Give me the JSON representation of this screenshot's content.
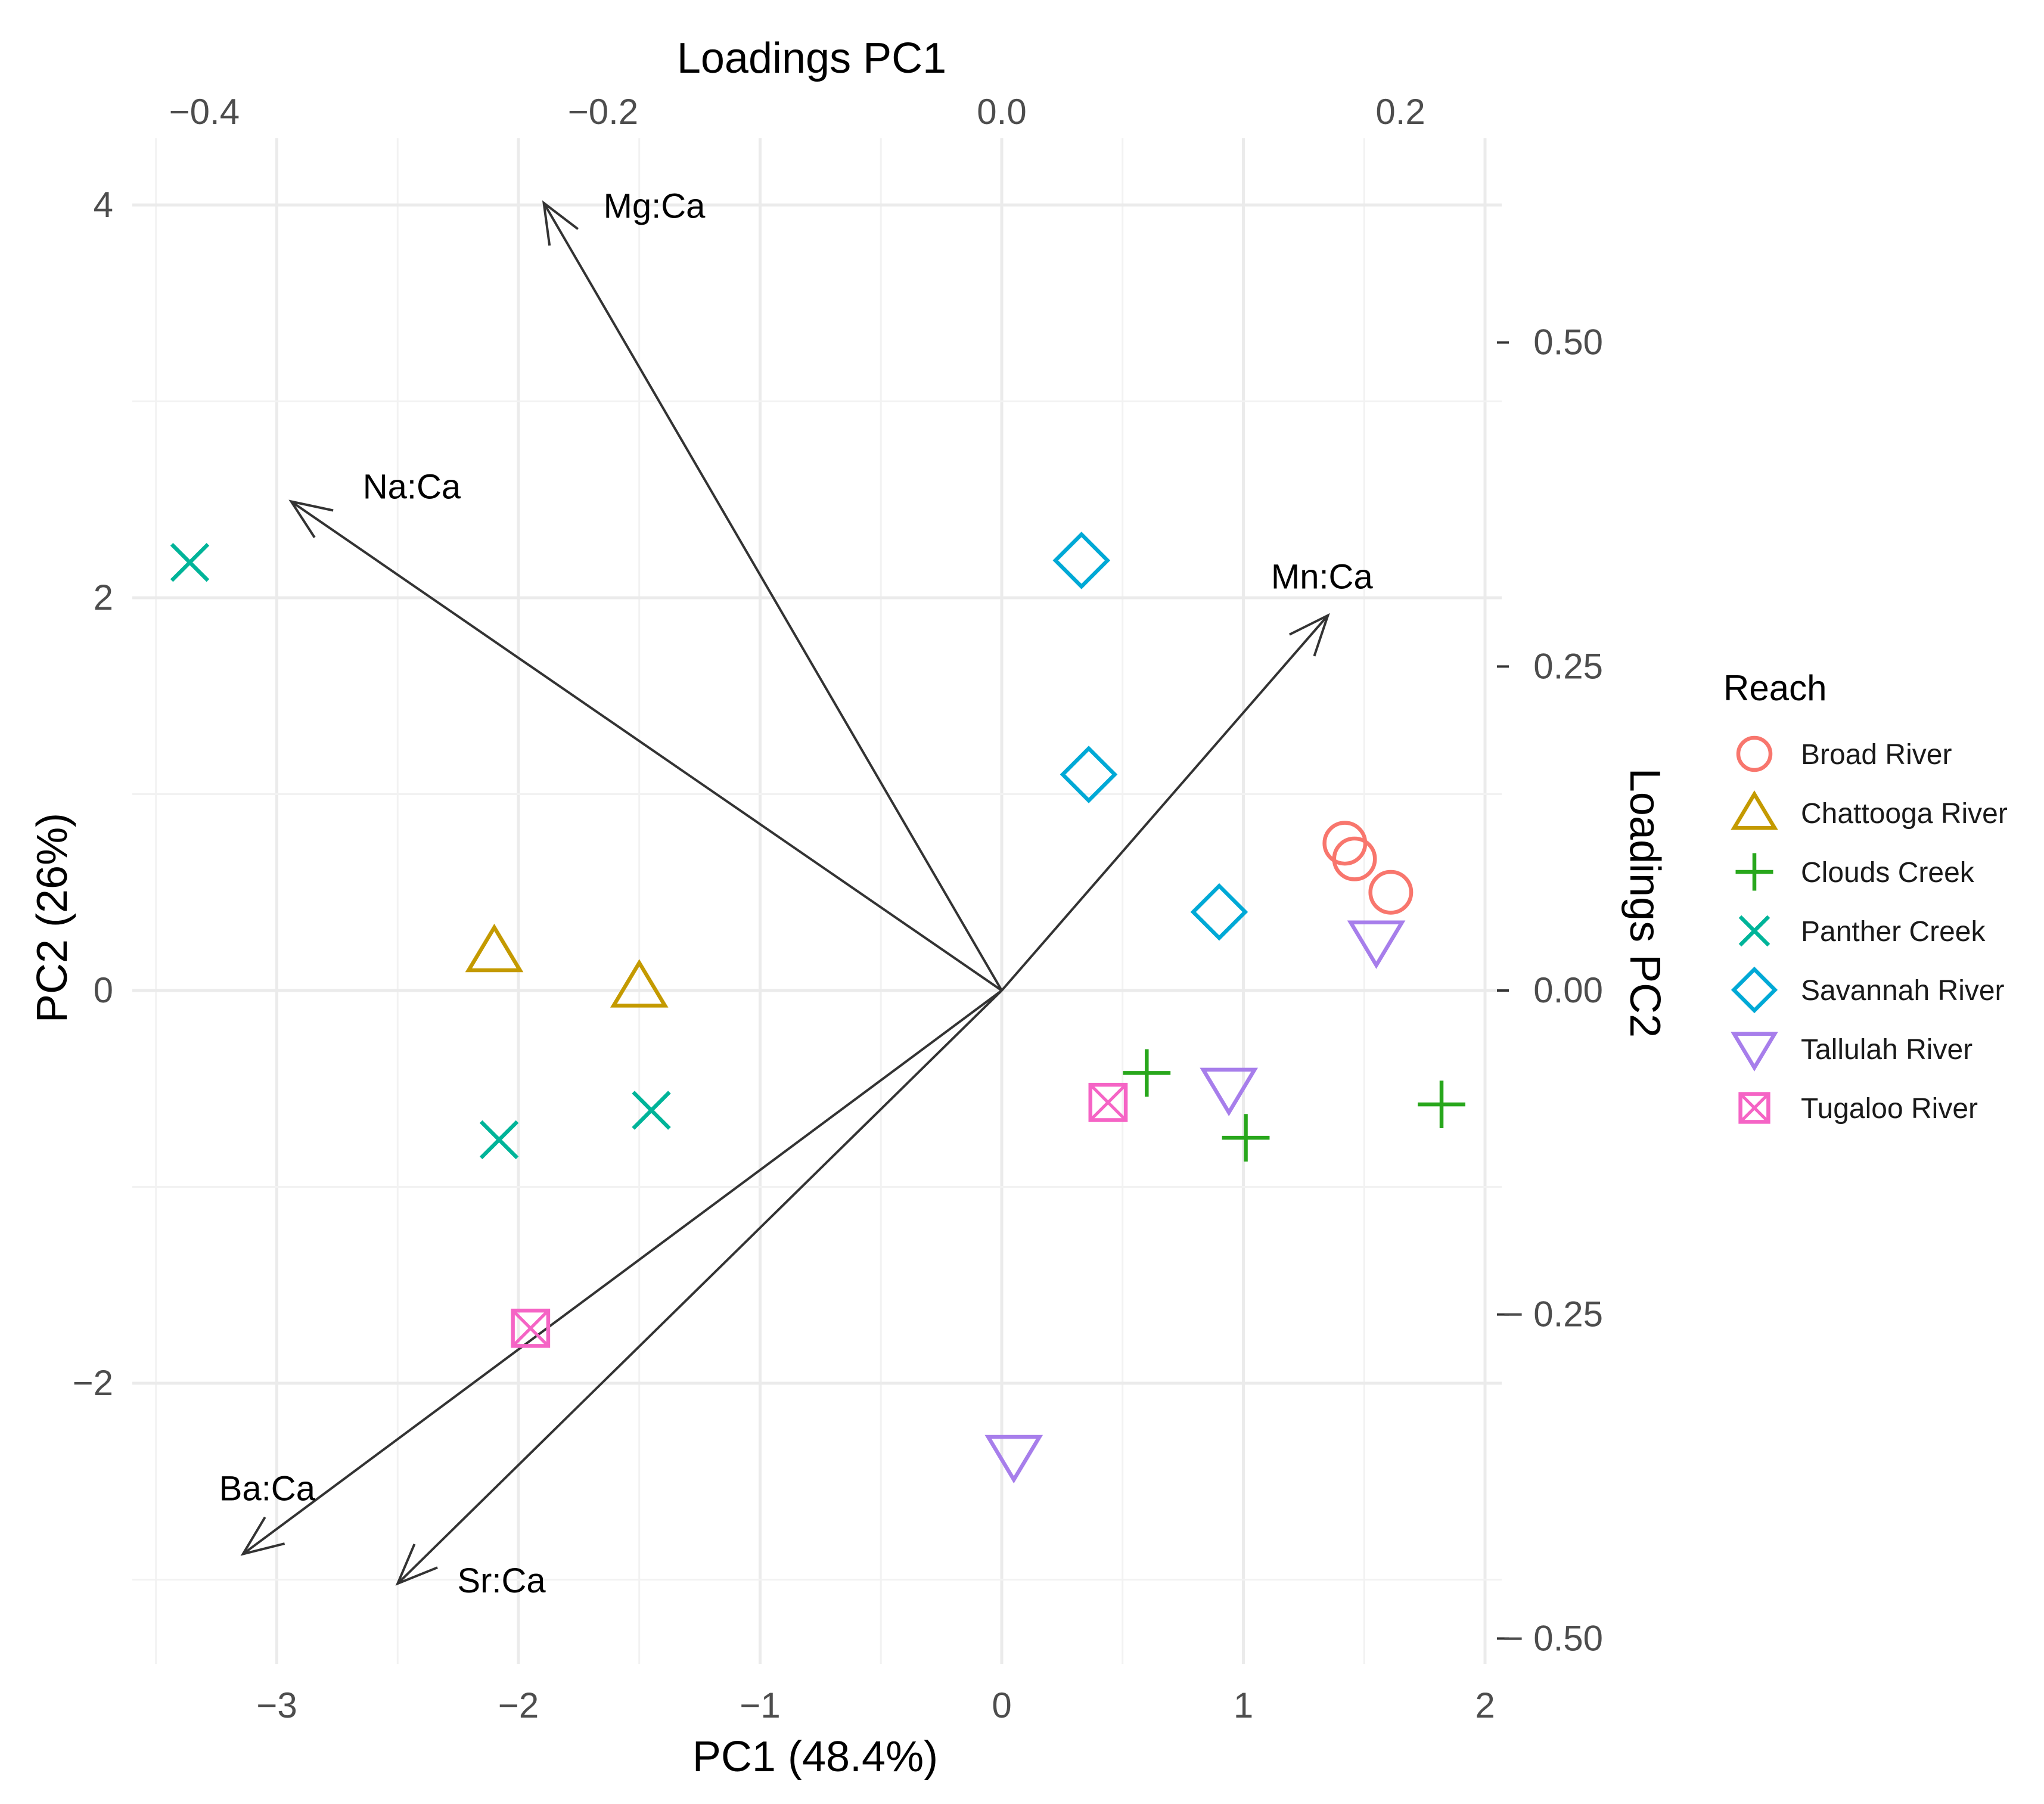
{
  "chart_data": {
    "type": "scatter",
    "subtype": "pca-biplot",
    "xlabel": "PC1 (48.4%)",
    "ylabel": "PC2 (26%)",
    "x2label": "Loadings PC1",
    "y2label": "Loadings PC2",
    "xlim": [
      -3.5,
      2.05
    ],
    "ylim": [
      -3.35,
      4.3
    ],
    "x_ticks": [
      {
        "value": -3,
        "label": "−3"
      },
      {
        "value": -2,
        "label": "−2"
      },
      {
        "value": -1,
        "label": "−1"
      },
      {
        "value": 0,
        "label": "0"
      },
      {
        "value": 1,
        "label": "1"
      },
      {
        "value": 2,
        "label": "2"
      }
    ],
    "y_ticks": [
      {
        "value": -2,
        "label": "−2"
      },
      {
        "value": 0,
        "label": "0"
      },
      {
        "value": 2,
        "label": "2"
      },
      {
        "value": 4,
        "label": "4"
      }
    ],
    "x2_ticks": [
      {
        "value": -0.4,
        "label": "−0.4"
      },
      {
        "value": -0.2,
        "label": "−0.2"
      },
      {
        "value": 0.0,
        "label": "0.0"
      },
      {
        "value": 0.2,
        "label": "0.2"
      }
    ],
    "y2_ticks": [
      {
        "value": 0.5,
        "label": "0.50"
      },
      {
        "value": 0.25,
        "label": "0.25"
      },
      {
        "value": 0.0,
        "label": "0.00"
      },
      {
        "value": -0.25,
        "label": "− 0.25"
      },
      {
        "value": -0.5,
        "label": "− 0.50"
      }
    ],
    "loadings_scale_x": 8.25,
    "loadings_scale_y": 6.6,
    "loadings": [
      {
        "name": "Mg:Ca",
        "pc1": -0.2297,
        "pc2": 0.6076
      },
      {
        "name": "Na:Ca",
        "pc1": -0.3564,
        "pc2": 0.3773
      },
      {
        "name": "Mn:Ca",
        "pc1": 0.1636,
        "pc2": 0.2894
      },
      {
        "name": "Ba:Ca",
        "pc1": -0.3806,
        "pc2": -0.4348
      },
      {
        "name": "Sr:Ca",
        "pc1": -0.303,
        "pc2": -0.4576
      }
    ],
    "legend": {
      "title": "Reach",
      "placement": "right"
    },
    "series": [
      {
        "name": "Broad River",
        "color": "#F8766D",
        "shape": "circle",
        "points": [
          [
            1.42,
            0.75
          ],
          [
            1.46,
            0.67
          ],
          [
            1.61,
            0.5
          ]
        ]
      },
      {
        "name": "Chattooga River",
        "color": "#C49A00",
        "shape": "triangle",
        "points": [
          [
            -2.1,
            0.2
          ],
          [
            -1.5,
            0.02
          ]
        ]
      },
      {
        "name": "Clouds Creek",
        "color": "#28A71C",
        "shape": "plus",
        "points": [
          [
            0.6,
            -0.42
          ],
          [
            1.01,
            -0.75
          ],
          [
            1.82,
            -0.58
          ]
        ]
      },
      {
        "name": "Panther Creek",
        "color": "#00B499",
        "shape": "cross",
        "points": [
          [
            -3.36,
            2.18
          ],
          [
            -2.08,
            -0.76
          ],
          [
            -1.45,
            -0.61
          ]
        ]
      },
      {
        "name": "Savannah River",
        "color": "#00A9D6",
        "shape": "diamond",
        "points": [
          [
            0.33,
            2.19
          ],
          [
            0.36,
            1.1
          ],
          [
            0.9,
            0.4
          ]
        ]
      },
      {
        "name": "Tallulah River",
        "color": "#A77EEB",
        "shape": "triangle-down",
        "points": [
          [
            1.55,
            0.25
          ],
          [
            0.94,
            -0.5
          ],
          [
            0.05,
            -2.37
          ]
        ]
      },
      {
        "name": "Tugaloo River",
        "color": "#F564C5",
        "shape": "square-cross",
        "points": [
          [
            0.44,
            -0.57
          ],
          [
            -1.95,
            -1.72
          ]
        ]
      }
    ]
  }
}
